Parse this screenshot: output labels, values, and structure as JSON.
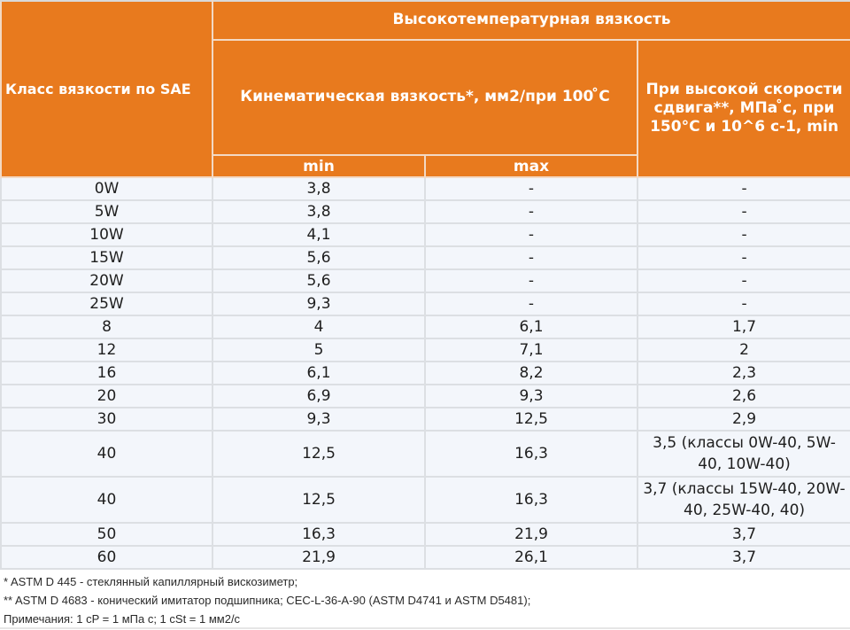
{
  "table": {
    "header": {
      "sae_class": "Класс вязкости по SAE",
      "high_temp_group": "Высокотемпературная вязкость",
      "kinematic": "Кинематическая вязкость*, мм2/при 100 ̊С",
      "high_shear": "При высокой скорости сдвига**, МПа ̊с, при 150°С и 10^6 с-1, min",
      "min": "min",
      "max": "max"
    },
    "rows": [
      {
        "sae": "0W",
        "min": "3,8",
        "max": "-",
        "hths": "-"
      },
      {
        "sae": "5W",
        "min": "3,8",
        "max": "-",
        "hths": "-"
      },
      {
        "sae": "10W",
        "min": "4,1",
        "max": "-",
        "hths": "-"
      },
      {
        "sae": "15W",
        "min": "5,6",
        "max": "-",
        "hths": "-"
      },
      {
        "sae": "20W",
        "min": "5,6",
        "max": "-",
        "hths": "-"
      },
      {
        "sae": "25W",
        "min": "9,3",
        "max": "-",
        "hths": "-"
      },
      {
        "sae": "8",
        "min": "4",
        "max": "6,1",
        "hths": "1,7"
      },
      {
        "sae": "12",
        "min": "5",
        "max": "7,1",
        "hths": "2"
      },
      {
        "sae": "16",
        "min": "6,1",
        "max": "8,2",
        "hths": "2,3"
      },
      {
        "sae": "20",
        "min": "6,9",
        "max": "9,3",
        "hths": "2,6"
      },
      {
        "sae": "30",
        "min": "9,3",
        "max": "12,5",
        "hths": "2,9"
      },
      {
        "sae": "40",
        "min": "12,5",
        "max": "16,3",
        "hths": "3,5 (классы 0W-40, 5W-40, 10W-40)"
      },
      {
        "sae": "40",
        "min": "12,5",
        "max": "16,3",
        "hths": "3,7 (классы 15W-40, 20W-40, 25W-40, 40)"
      },
      {
        "sae": "50",
        "min": "16,3",
        "max": "21,9",
        "hths": "3,7"
      },
      {
        "sae": "60",
        "min": "21,9",
        "max": "26,1",
        "hths": "3,7"
      }
    ]
  },
  "notes": {
    "note1": "* ASTM D 445 - стеклянный капиллярный вискозиметр;",
    "note2": "** ASTM D 4683 - конический имитатор подшипника; CEC-L-36-A-90 (ASTM D4741 и ASTM D5481);",
    "note3": "Примечания: 1 cP = 1 мПа с; 1 cSt = 1 мм2/с"
  },
  "colors": {
    "header_bg": "#E87A1E",
    "header_text": "#FFFFFF",
    "row_bg": "#F3F6FB",
    "grid": "#DCDFE3"
  }
}
